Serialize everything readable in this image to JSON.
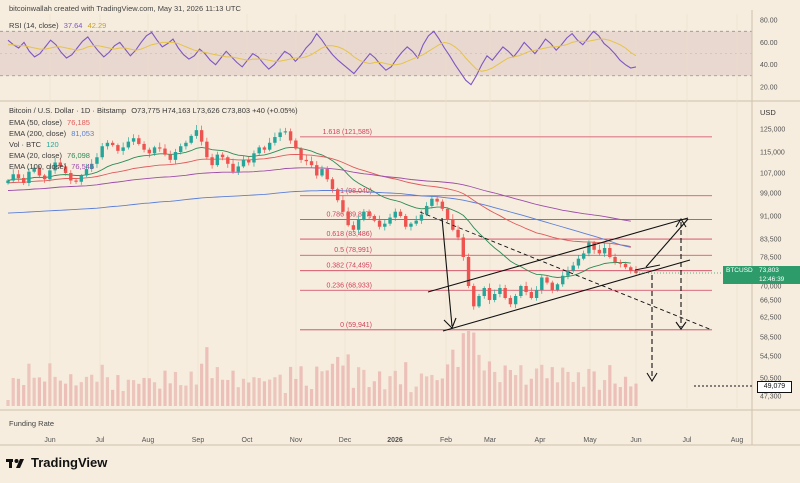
{
  "header": {
    "text": "bitcoinwallah created with TradingView.com, May 31, 2026 11:13 UTC"
  },
  "rsi_legend": {
    "label": "RSI (14, close)",
    "rsi_value": "37.64",
    "ma_value": "42.29",
    "rsi_color": "#7e57c2",
    "ma_color": "#e6c34a"
  },
  "price_legend": {
    "symbol": "Bitcoin / U.S. Dollar · 1D · Bitstamp",
    "ohlc": "O73,775 H74,163 L73,626 C73,803 +40 (+0.05%)",
    "indicators": [
      {
        "label": "EMA (50, close)",
        "value": "76,185",
        "color": "#e05a5a"
      },
      {
        "label": "EMA (200, close)",
        "value": "81,053",
        "color": "#5b7fd8"
      },
      {
        "label": "Vol · BTC",
        "value": "120",
        "color": "#26a69a"
      },
      {
        "label": "EMA (20, close)",
        "value": "76,098",
        "color": "#2e8b57"
      },
      {
        "label": "EMA (100, close)",
        "value": "76,545",
        "color": "#9c4ea8"
      }
    ]
  },
  "funding": {
    "label": "Funding Rate"
  },
  "logo": {
    "text": "TradingView"
  },
  "currency": "USD",
  "price_badge": {
    "symbol": "BTCUSD",
    "price": "73,803",
    "countdown": "12:46:39",
    "color": "#2e9b6b"
  },
  "target_badge": {
    "value": "49,079"
  },
  "colors": {
    "up": "#26a69a",
    "down": "#ef5350",
    "fib": "#d0415c",
    "background": "#f6edde"
  },
  "chart_data": [
    {
      "type": "line",
      "title": "RSI (14, close)",
      "y_ticks": [
        "80.00",
        "60.00",
        "40.00",
        "20.00"
      ],
      "ylim": [
        10,
        82
      ],
      "bands": [
        70,
        30
      ],
      "series": [
        {
          "name": "RSI (14, close)",
          "values": [
            62,
            58,
            55,
            60,
            52,
            47,
            50,
            56,
            62,
            58,
            51,
            46,
            49,
            55,
            61,
            65,
            58,
            52,
            47,
            51,
            57,
            60,
            54,
            48,
            53,
            60,
            66,
            69,
            62,
            56,
            59,
            63,
            55,
            49,
            45,
            48,
            54,
            50,
            44,
            40,
            46,
            52,
            47,
            42,
            38,
            44,
            50,
            47,
            41,
            36,
            40,
            46,
            52,
            49,
            43,
            48,
            55,
            60,
            68,
            62,
            55,
            49,
            44,
            40,
            36,
            32,
            38,
            44,
            50,
            46,
            40,
            35,
            38,
            45,
            51,
            56,
            52,
            46,
            58,
            66,
            70,
            63,
            55,
            48,
            40,
            33,
            26,
            22,
            30,
            40,
            48,
            44,
            50,
            56,
            52,
            47,
            53,
            60,
            55,
            50,
            56,
            63,
            59,
            53,
            58,
            64,
            68,
            62,
            58,
            64,
            70,
            66,
            59,
            55,
            50,
            44,
            40,
            37,
            38
          ]
        },
        {
          "name": "RSI-based MA",
          "values": [
            58,
            58,
            57,
            57,
            56,
            55,
            54,
            54,
            55,
            56,
            56,
            55,
            54,
            53,
            54,
            56,
            57,
            57,
            56,
            55,
            54,
            55,
            55,
            54,
            53,
            54,
            56,
            58,
            59,
            60,
            60,
            60,
            59,
            57,
            55,
            53,
            52,
            51,
            50,
            49,
            48,
            47,
            47,
            46,
            45,
            44,
            45,
            45,
            45,
            44,
            43,
            43,
            44,
            45,
            46,
            46,
            47,
            49,
            52,
            55,
            57,
            57,
            56,
            54,
            51,
            47,
            44,
            42,
            41,
            42,
            42,
            41,
            40,
            40,
            41,
            43,
            45,
            47,
            49,
            52,
            55,
            58,
            60,
            59,
            56,
            52,
            46,
            41,
            36,
            34,
            35,
            37,
            40,
            43,
            46,
            47,
            48,
            50,
            52,
            53,
            54,
            55,
            56,
            56,
            57,
            58,
            60,
            61,
            61,
            61,
            62,
            63,
            63,
            62,
            60,
            58,
            55,
            51,
            48
          ]
        }
      ]
    },
    {
      "type": "candlestick",
      "title": "Bitcoin / U.S. Dollar · 1D · Bitstamp",
      "x_labels": [
        "Jun",
        "Jul",
        "Aug",
        "Sep",
        "Oct",
        "Nov",
        "Dec",
        "2026",
        "Feb",
        "Mar",
        "Apr",
        "May",
        "Jun",
        "Jul",
        "Aug"
      ],
      "y_ticks": [
        "125,000",
        "115,000",
        "107,000",
        "99,000",
        "91,000",
        "83,500",
        "78,500",
        "70,000",
        "66,500",
        "62,500",
        "58,500",
        "54,500",
        "50,500",
        "47,300"
      ],
      "fib_levels": [
        {
          "label": "1.618 (121,585)",
          "value": 121585
        },
        {
          "label": "1 (98,040)",
          "value": 98040
        },
        {
          "label": "0.786 (89,887)",
          "value": 89887
        },
        {
          "label": "0.618 (83,486)",
          "value": 83486
        },
        {
          "label": "0.5 (78,991)",
          "value": 78991
        },
        {
          "label": "0.382 (74,495)",
          "value": 74495
        },
        {
          "label": "0.236 (68,933)",
          "value": 68933
        },
        {
          "label": "0 (59,941)",
          "value": 59941
        }
      ],
      "close": [
        104000,
        106500,
        105000,
        103000,
        107500,
        109000,
        106000,
        104500,
        108000,
        111000,
        109500,
        107000,
        104000,
        103500,
        106000,
        108500,
        110500,
        113000,
        117500,
        119000,
        118000,
        115500,
        117000,
        119500,
        121000,
        118500,
        116000,
        114500,
        117000,
        116500,
        114000,
        112000,
        115000,
        117500,
        119000,
        122000,
        124500,
        119500,
        113000,
        110000,
        114000,
        113000,
        110500,
        107500,
        109500,
        112000,
        111000,
        114500,
        117000,
        116000,
        119000,
        121500,
        123500,
        124000,
        120000,
        116500,
        112000,
        111500,
        110000,
        106000,
        108500,
        104500,
        100500,
        96500,
        92500,
        88000,
        86500,
        90000,
        92500,
        91000,
        89500,
        87500,
        88500,
        90500,
        92500,
        91000,
        87500,
        88500,
        89500,
        91500,
        94500,
        97000,
        96000,
        93500,
        90000,
        86500,
        84000,
        78500,
        70000,
        65000,
        67500,
        69500,
        66500,
        68000,
        69500,
        67000,
        65500,
        67500,
        70000,
        68500,
        67000,
        69000,
        72500,
        71000,
        69000,
        70500,
        73000,
        74500,
        76000,
        78000,
        79500,
        82500,
        80500,
        79500,
        81000,
        78500,
        77000,
        76500,
        75500,
        74500,
        73803
      ],
      "ema": [
        {
          "name": "EMA (20, close)",
          "values": [
            104000,
            104500,
            104600,
            104500,
            104800,
            105200,
            105300,
            105200,
            105500,
            106000,
            106300,
            106400,
            106200,
            106000,
            106000,
            106300,
            106700,
            107300,
            108300,
            109400,
            110200,
            110700,
            111300,
            112000,
            112800,
            113300,
            113600,
            113700,
            114100,
            114300,
            114300,
            114100,
            114200,
            114500,
            114900,
            115600,
            116600,
            117000,
            116600,
            116000,
            115800,
            115600,
            115100,
            114300,
            113800,
            113600,
            113300,
            113400,
            113700,
            113900,
            114400,
            115100,
            115900,
            116700,
            117000,
            117000,
            116500,
            116000,
            115400,
            114500,
            113900,
            112900,
            111700,
            110200,
            108500,
            106300,
            104300,
            102900,
            101700,
            100600,
            99500,
            98300,
            97400,
            96800,
            96400,
            95900,
            95100,
            94400,
            93800,
            93500,
            93600,
            93900,
            94100,
            94100,
            93800,
            93100,
            92300,
            91200,
            89400,
            87200,
            85400,
            83800,
            82300,
            81000,
            79900,
            78600,
            77300,
            76400,
            75700,
            74800,
            74000,
            73400,
            73300,
            73100,
            72700,
            72500,
            72600,
            72800,
            73100,
            73600,
            74300,
            75200,
            75700,
            76100,
            76600,
            76800,
            76900,
            76900,
            76900,
            76700,
            76098
          ]
        },
        {
          "name": "EMA (50, close)",
          "values": [
            103000,
            103200,
            103300,
            103300,
            103500,
            103700,
            103800,
            103900,
            104100,
            104400,
            104600,
            104800,
            104800,
            104800,
            104900,
            105100,
            105300,
            105600,
            106100,
            106600,
            107100,
            107400,
            107800,
            108200,
            108700,
            109000,
            109300,
            109500,
            109800,
            110000,
            110100,
            110200,
            110400,
            110700,
            111000,
            111400,
            111900,
            112200,
            112300,
            112200,
            112300,
            112300,
            112300,
            112100,
            112000,
            112000,
            112000,
            112100,
            112300,
            112400,
            112700,
            113000,
            113400,
            113800,
            114000,
            114100,
            114000,
            113900,
            113800,
            113500,
            113300,
            112900,
            112400,
            111800,
            111000,
            110100,
            109200,
            108500,
            107900,
            107300,
            106700,
            106000,
            105500,
            105000,
            104600,
            104100,
            103500,
            103000,
            102600,
            102200,
            101900,
            101700,
            101400,
            101100,
            100700,
            100200,
            99600,
            98800,
            97700,
            96400,
            95200,
            94100,
            93000,
            92000,
            91100,
            90100,
            89200,
            88400,
            87700,
            86900,
            86200,
            85500,
            85100,
            84600,
            84100,
            83700,
            83400,
            83100,
            82900,
            82800,
            82700,
            82700,
            82600,
            82500,
            82400,
            82300,
            82100,
            81900,
            81700,
            81400,
            76185
          ]
        },
        {
          "name": "EMA (100, close)",
          "values": [
            100000,
            100100,
            100200,
            100300,
            100400,
            100600,
            100700,
            100800,
            101000,
            101200,
            101400,
            101500,
            101600,
            101700,
            101800,
            101900,
            102100,
            102300,
            102600,
            102900,
            103200,
            103400,
            103700,
            104000,
            104300,
            104500,
            104700,
            104900,
            105100,
            105300,
            105400,
            105500,
            105700,
            105900,
            106100,
            106400,
            106700,
            106900,
            107000,
            107100,
            107200,
            107300,
            107300,
            107300,
            107300,
            107400,
            107400,
            107500,
            107700,
            107800,
            108000,
            108200,
            108400,
            108700,
            108800,
            108900,
            109000,
            109000,
            109000,
            108900,
            108900,
            108800,
            108600,
            108400,
            108100,
            107700,
            107300,
            107000,
            106700,
            106500,
            106200,
            105900,
            105600,
            105400,
            105200,
            105000,
            104700,
            104400,
            104200,
            104000,
            103800,
            103700,
            103600,
            103400,
            103200,
            103000,
            102700,
            102300,
            101800,
            101200,
            100600,
            100000,
            99500,
            99000,
            98500,
            98000,
            97500,
            97000,
            96500,
            96000,
            95500,
            95000,
            94600,
            94200,
            93800,
            93400,
            93000,
            92700,
            92400,
            92100,
            91800,
            91600,
            91300,
            91100,
            90800,
            90500,
            90200,
            89900,
            89600,
            89300,
            76545
          ]
        },
        {
          "name": "EMA (200, close)",
          "values": [
            92000,
            92100,
            92200,
            92300,
            92400,
            92500,
            92600,
            92700,
            92800,
            92900,
            93000,
            93100,
            93200,
            93300,
            93400,
            93500,
            93600,
            93700,
            93900,
            94100,
            94300,
            94400,
            94600,
            94800,
            95000,
            95200,
            95400,
            95500,
            95700,
            95900,
            96000,
            96100,
            96300,
            96500,
            96700,
            96900,
            97100,
            97300,
            97400,
            97500,
            97600,
            97700,
            97800,
            97900,
            98000,
            98100,
            98200,
            98300,
            98400,
            98500,
            98700,
            98900,
            99100,
            99300,
            99500,
            99600,
            99700,
            99800,
            99900,
            99900,
            100000,
            100000,
            100000,
            100000,
            99900,
            99800,
            99700,
            99600,
            99500,
            99400,
            99300,
            99200,
            99100,
            99000,
            98900,
            98800,
            98600,
            98400,
            98200,
            98000,
            97900,
            97800,
            97700,
            97500,
            97300,
            97100,
            96800,
            96500,
            96100,
            95700,
            95300,
            94900,
            94400,
            93900,
            93400,
            92900,
            92400,
            91900,
            91400,
            90900,
            90400,
            89900,
            89400,
            88900,
            88400,
            87900,
            87400,
            86900,
            86400,
            85900,
            85400,
            84900,
            84400,
            83900,
            83400,
            82900,
            82400,
            81900,
            81500,
            81200,
            81053
          ]
        }
      ]
    }
  ]
}
